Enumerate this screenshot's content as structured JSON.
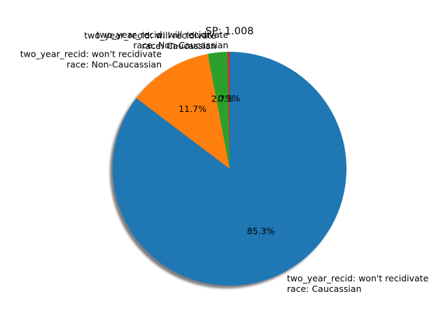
{
  "chart_data": {
    "type": "pie",
    "title": "SP: 1.008",
    "start_angle_deg": 90,
    "direction": "counterclockwise",
    "shadow": true,
    "slices": [
      {
        "label_lines": [
          "two_year_recid: will recidivate",
          "race: Non-Caucassian"
        ],
        "value": 0.3,
        "pct_label": "0.3%",
        "color": "#d62728"
      },
      {
        "label_lines": [
          "two_year_recid: will recidivate",
          "race: Caucassian"
        ],
        "value": 2.7,
        "pct_label": "2.7%",
        "color": "#2ca02c"
      },
      {
        "label_lines": [
          "two_year_recid: won't recidivate",
          "race: Non-Caucassian"
        ],
        "value": 11.7,
        "pct_label": "11.7%",
        "color": "#ff7f0e"
      },
      {
        "label_lines": [
          "two_year_recid: won't recidivate",
          "race: Caucassian"
        ],
        "value": 85.3,
        "pct_label": "85.3%",
        "color": "#1f77b4"
      }
    ]
  }
}
